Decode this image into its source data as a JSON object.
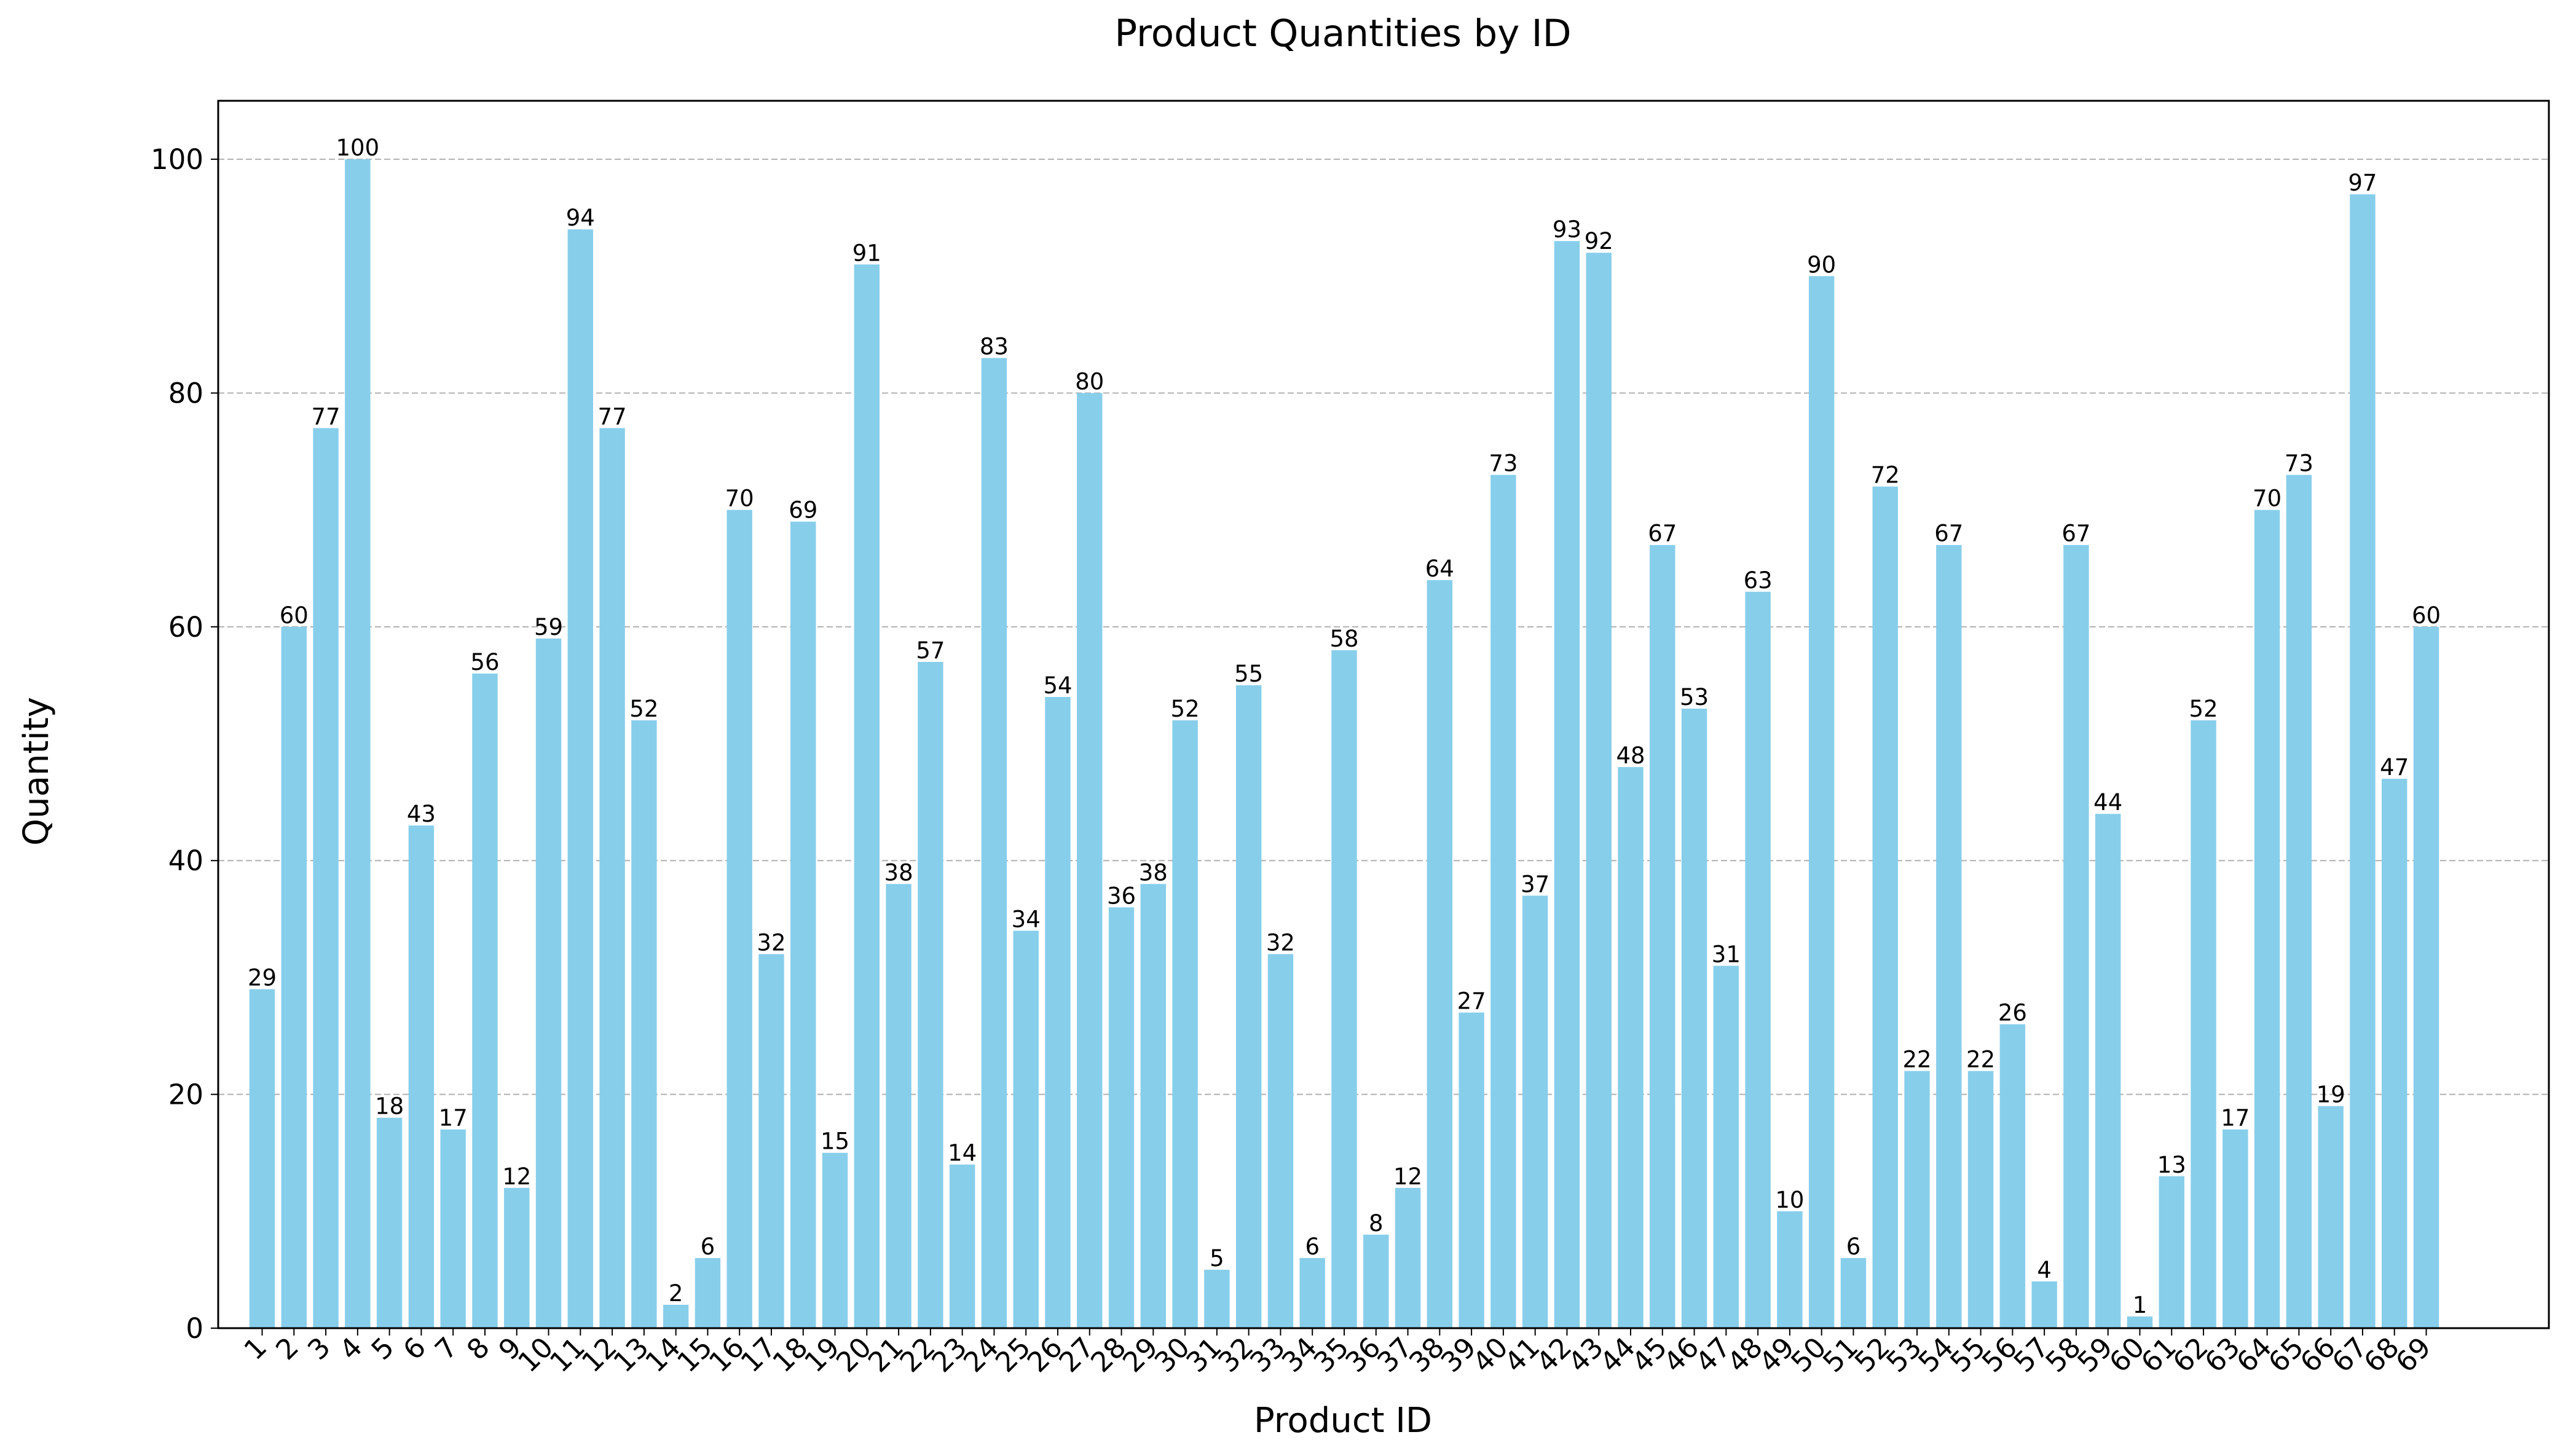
{
  "chart_data": {
    "type": "bar",
    "title": "Product Quantities by ID",
    "xlabel": "Product ID",
    "ylabel": "Quantity",
    "ylim": [
      0,
      105
    ],
    "yticks": [
      0,
      20,
      40,
      60,
      80,
      100
    ],
    "grid": "y-dashed",
    "bar_color": "#87CEEB",
    "categories": [
      "1",
      "2",
      "3",
      "4",
      "5",
      "6",
      "7",
      "8",
      "9",
      "10",
      "11",
      "12",
      "13",
      "14",
      "15",
      "16",
      "17",
      "18",
      "19",
      "20",
      "21",
      "22",
      "23",
      "24",
      "25",
      "26",
      "27",
      "28",
      "29",
      "30",
      "31",
      "32",
      "33",
      "34",
      "35",
      "36",
      "37",
      "38",
      "39",
      "40",
      "41",
      "42",
      "43",
      "44",
      "45",
      "46",
      "47",
      "48",
      "49",
      "50",
      "51",
      "52",
      "53",
      "54",
      "55",
      "56",
      "57",
      "58",
      "59",
      "60",
      "61",
      "62",
      "63",
      "64",
      "65",
      "66",
      "67",
      "68",
      "69"
    ],
    "values": [
      29,
      60,
      77,
      100,
      18,
      43,
      17,
      56,
      12,
      59,
      94,
      77,
      52,
      2,
      6,
      70,
      32,
      69,
      15,
      91,
      38,
      57,
      14,
      83,
      34,
      54,
      80,
      36,
      38,
      52,
      5,
      55,
      32,
      6,
      58,
      8,
      12,
      64,
      27,
      73,
      37,
      93,
      92,
      48,
      67,
      53,
      31,
      63,
      10,
      90,
      6,
      72,
      22,
      67,
      22,
      26,
      4,
      67,
      44,
      1,
      13,
      52,
      17,
      70,
      73,
      19,
      97,
      47,
      60
    ]
  }
}
